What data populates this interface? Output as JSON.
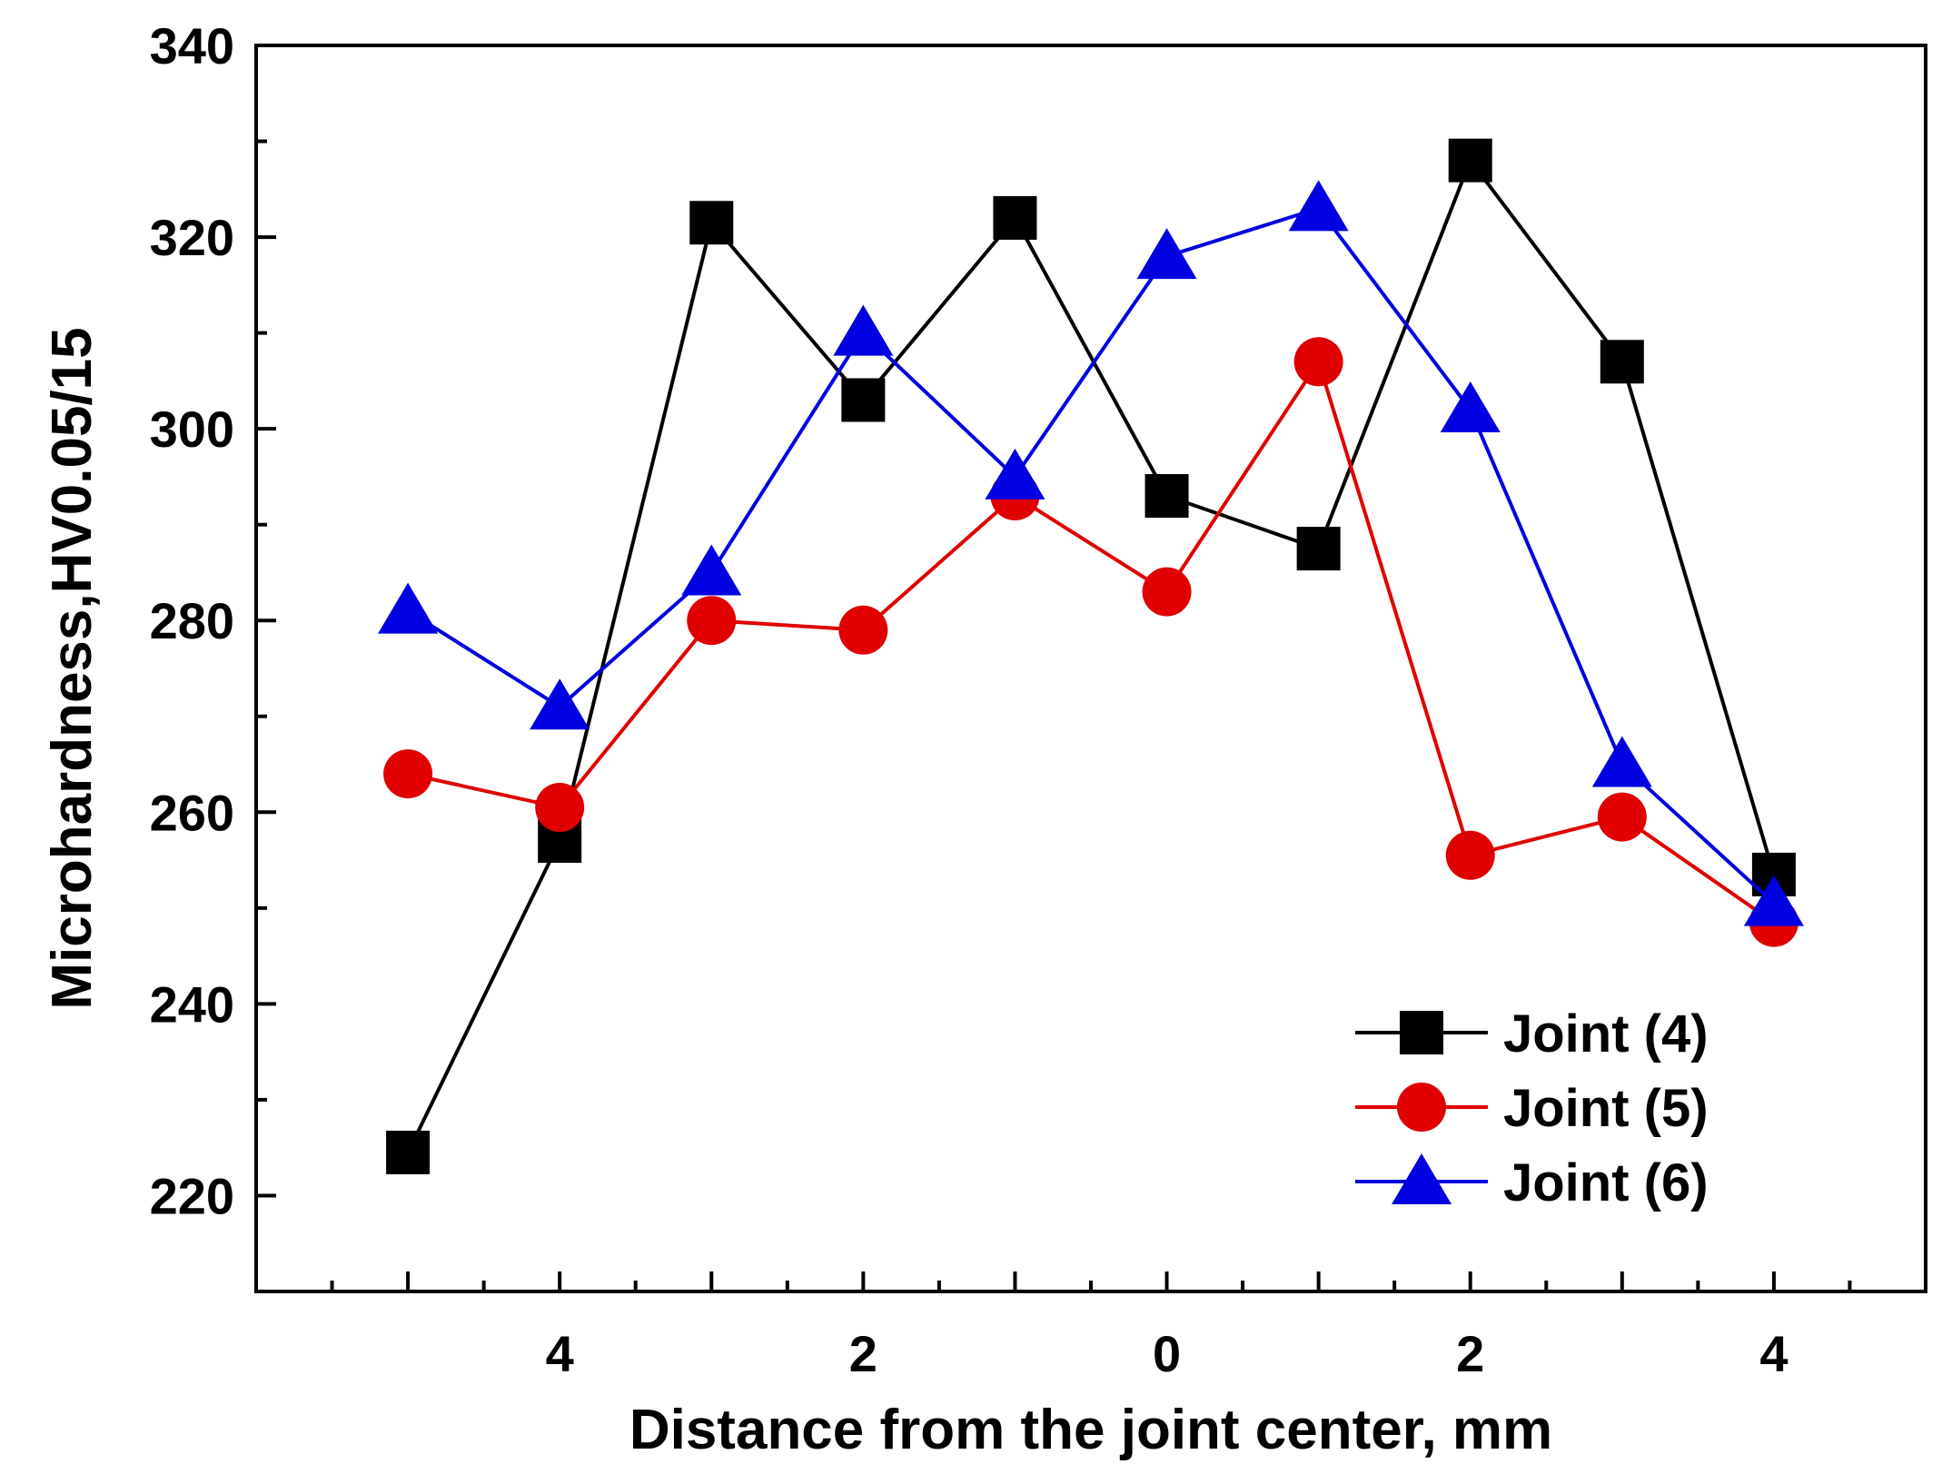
{
  "chart_data": {
    "type": "line",
    "title": "",
    "xlabel": "Distance from the joint center, mm",
    "ylabel": "Microhardness,HV0.05/15",
    "x": [
      -5,
      -4,
      -3,
      -2,
      -1,
      0,
      1,
      2,
      3,
      4
    ],
    "xlim": [
      -6,
      5
    ],
    "ylim": [
      210,
      340
    ],
    "x_ticks": [
      -5,
      -4,
      -3,
      -2,
      -1,
      0,
      1,
      2,
      3,
      4
    ],
    "x_tick_labels": [
      "",
      "4",
      "",
      "2",
      "",
      "0",
      "",
      "2",
      "",
      "4"
    ],
    "y_ticks": [
      220,
      240,
      260,
      280,
      300,
      320,
      340
    ],
    "y_tick_labels": [
      "220",
      "240",
      "260",
      "280",
      "300",
      "320",
      "340"
    ],
    "y_minor_ticks": [
      230,
      250,
      270,
      290,
      310,
      330
    ],
    "grid": false,
    "legend_position": "bottom-right",
    "series": [
      {
        "name": "Joint (4)",
        "color": "#000000",
        "marker": "square",
        "values": [
          224.5,
          257,
          321.5,
          303,
          322,
          293,
          287.5,
          328,
          307,
          253.5
        ]
      },
      {
        "name": "Joint (5)",
        "color": "#e00000",
        "marker": "circle",
        "values": [
          264,
          260.5,
          280,
          279,
          293,
          283,
          307,
          255.5,
          259.5,
          248.5
        ]
      },
      {
        "name": "Joint (6)",
        "color": "#0000e0",
        "marker": "triangle",
        "values": [
          281,
          271,
          285,
          310,
          295,
          318,
          323,
          302,
          265,
          250.5
        ]
      }
    ]
  }
}
